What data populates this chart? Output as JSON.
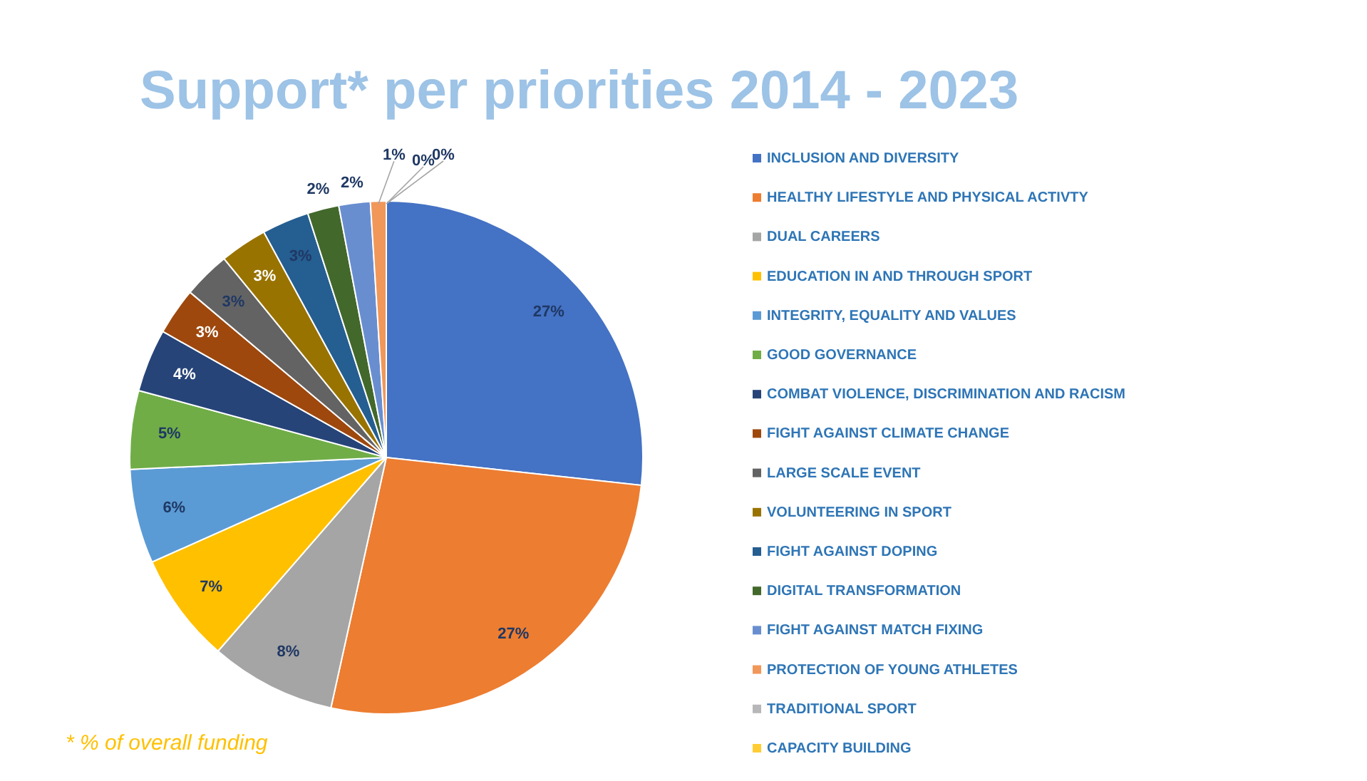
{
  "chart_data": {
    "type": "pie",
    "title": "Support* per priorities 2014 - 2023",
    "categories": [
      "INCLUSION AND DIVERSITY",
      "HEALTHY LIFESTYLE AND PHYSICAL ACTIVTY",
      "DUAL CAREERS",
      "EDUCATION IN AND THROUGH SPORT",
      "INTEGRITY, EQUALITY AND VALUES",
      "GOOD GOVERNANCE",
      "COMBAT VIOLENCE, DISCRIMINATION AND RACISM",
      "FIGHT AGAINST CLIMATE CHANGE",
      "LARGE SCALE EVENT",
      "VOLUNTEERING IN SPORT",
      "FIGHT AGAINST DOPING",
      "DIGITAL TRANSFORMATION",
      "FIGHT AGAINST MATCH FIXING",
      "PROTECTION OF YOUNG ATHLETES",
      "TRADITIONAL SPORT",
      "CAPACITY BUILDING"
    ],
    "values": [
      27,
      27,
      8,
      7,
      6,
      5,
      4,
      3,
      3,
      3,
      3,
      2,
      2,
      1,
      0,
      0
    ],
    "value_labels": [
      "27%",
      "27%",
      "8%",
      "7%",
      "6%",
      "5%",
      "4%",
      "3%",
      "3%",
      "3%",
      "3%",
      "2%",
      "2%",
      "1%",
      "0%",
      "0%"
    ],
    "colors": [
      "#4472c4",
      "#ed7d31",
      "#a5a5a5",
      "#ffc000",
      "#5b9bd5",
      "#70ad47",
      "#264478",
      "#9e480e",
      "#636363",
      "#997300",
      "#255e91",
      "#43682b",
      "#698ed0",
      "#f1975a",
      "#b7b7b7",
      "#ffcd33"
    ],
    "legend": "right",
    "annotations": [
      "* % of overall funding"
    ]
  }
}
